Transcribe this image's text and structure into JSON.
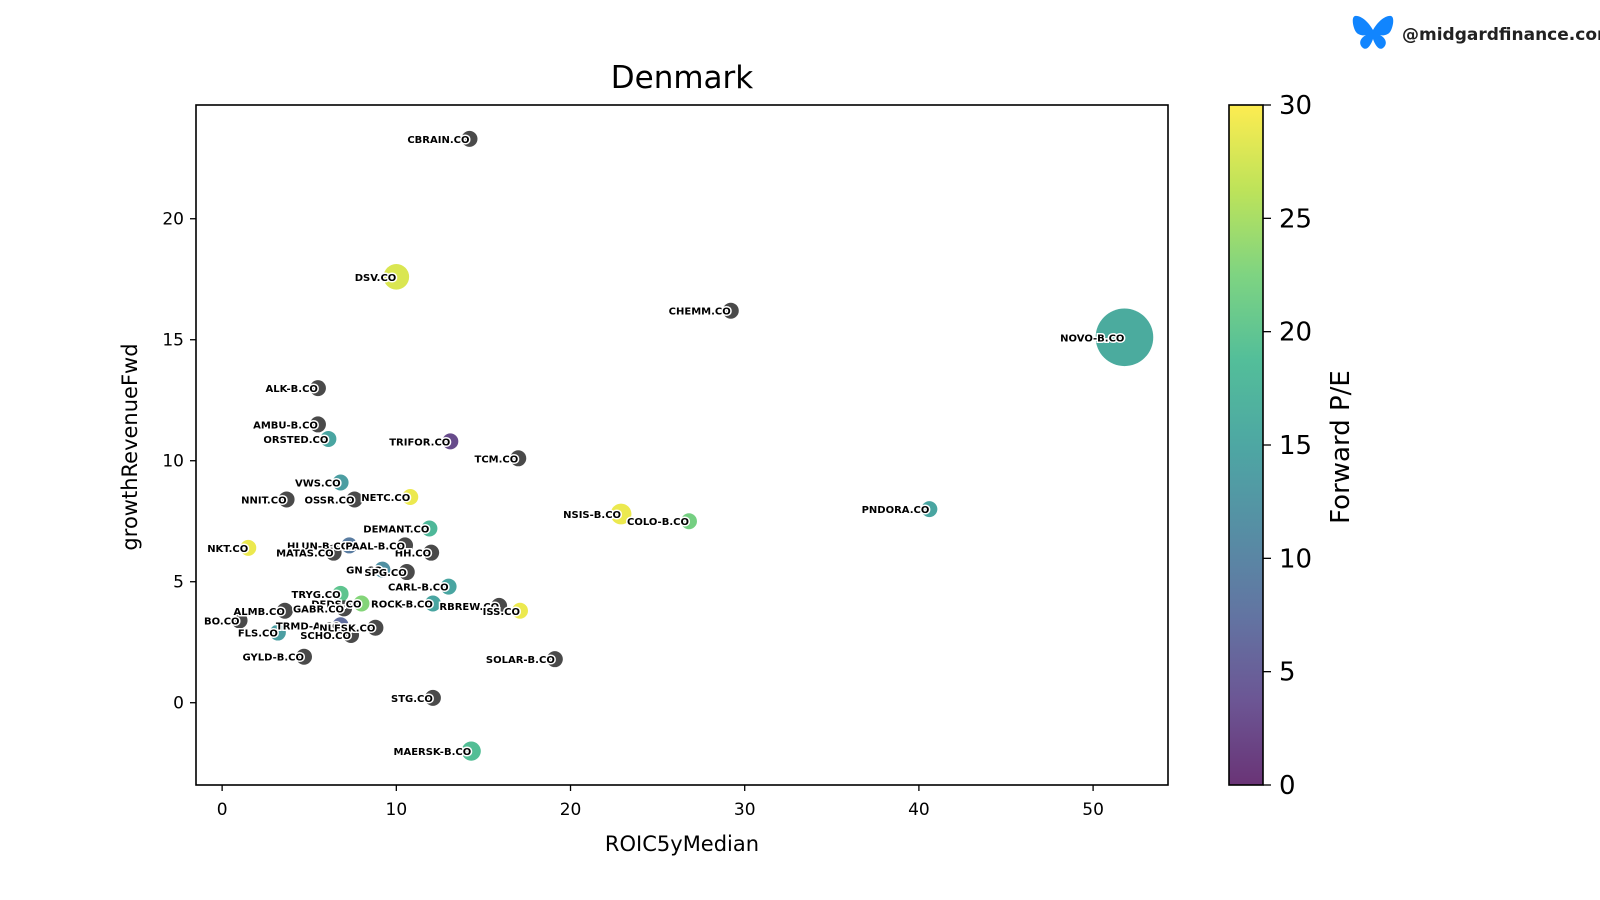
{
  "brand": {
    "handle": "@midgardfinance.com",
    "icon": "butterfly-icon",
    "icon_color": "#1185fe"
  },
  "chart_data": {
    "type": "scatter",
    "title": "Denmark",
    "xlabel": "ROIC5yMedian",
    "ylabel": "growthRevenueFwd",
    "xlim": [
      -1.5,
      54.3
    ],
    "ylim": [
      -3.4,
      24.7
    ],
    "xticks": [
      0,
      10,
      20,
      30,
      40,
      50
    ],
    "yticks": [
      0,
      5,
      10,
      15,
      20
    ],
    "grid": false,
    "colorbar": {
      "label": "Forward P/E",
      "range": [
        0,
        30
      ],
      "ticks": [
        0,
        5,
        10,
        15,
        20,
        25,
        30
      ],
      "colormap": "viridis"
    },
    "missing_color": "#222222",
    "points": [
      {
        "label": "CBRAIN.CO",
        "x": 14.2,
        "y": 23.3,
        "pe": null,
        "size": 10
      },
      {
        "label": "DSV.CO",
        "x": 10.0,
        "y": 17.6,
        "pe": 28,
        "size": 16
      },
      {
        "label": "CHEMM.CO",
        "x": 29.2,
        "y": 16.2,
        "pe": null,
        "size": 10
      },
      {
        "label": "NOVO-B.CO",
        "x": 51.8,
        "y": 15.1,
        "pe": 16,
        "size": 36
      },
      {
        "label": "ALK-B.CO",
        "x": 5.5,
        "y": 13.0,
        "pe": null,
        "size": 10
      },
      {
        "label": "AMBU-B.CO",
        "x": 5.5,
        "y": 11.5,
        "pe": null,
        "size": 10
      },
      {
        "label": "ORSTED.CO",
        "x": 6.1,
        "y": 10.9,
        "pe": 15,
        "size": 10
      },
      {
        "label": "TRIFOR.CO",
        "x": 13.1,
        "y": 10.8,
        "pe": 3,
        "size": 10
      },
      {
        "label": "TCM.CO",
        "x": 17.0,
        "y": 10.1,
        "pe": null,
        "size": 10
      },
      {
        "label": "VWS.CO",
        "x": 6.8,
        "y": 9.1,
        "pe": 14,
        "size": 10
      },
      {
        "label": "NETC.CO",
        "x": 10.8,
        "y": 8.5,
        "pe": 29,
        "size": 10
      },
      {
        "label": "NNIT.CO",
        "x": 3.7,
        "y": 8.4,
        "pe": null,
        "size": 10
      },
      {
        "label": "OSSR.CO",
        "x": 7.6,
        "y": 8.4,
        "pe": null,
        "size": 10
      },
      {
        "label": "PNDORA.CO",
        "x": 40.6,
        "y": 8.0,
        "pe": 15,
        "size": 10
      },
      {
        "label": "NSIS-B.CO",
        "x": 22.9,
        "y": 7.8,
        "pe": 29,
        "size": 13
      },
      {
        "label": "COLO-B.CO",
        "x": 26.8,
        "y": 7.5,
        "pe": 22,
        "size": 10
      },
      {
        "label": "DEMANT.CO",
        "x": 11.9,
        "y": 7.2,
        "pe": 18,
        "size": 10
      },
      {
        "label": "HH.CO",
        "x": 12.0,
        "y": 6.2,
        "pe": null,
        "size": 10
      },
      {
        "label": "HLUN-B.CO",
        "x": 7.3,
        "y": 6.5,
        "pe": 9,
        "size": 10
      },
      {
        "label": "PAAL-B.CO",
        "x": 10.5,
        "y": 6.5,
        "pe": null,
        "size": 10
      },
      {
        "label": "NKT.CO",
        "x": 1.5,
        "y": 6.4,
        "pe": 29,
        "size": 10
      },
      {
        "label": "MATAS.CO",
        "x": 6.4,
        "y": 6.2,
        "pe": null,
        "size": 10
      },
      {
        "label": "GN.CO",
        "x": 9.2,
        "y": 5.5,
        "pe": 12,
        "size": 10
      },
      {
        "label": "SPG.CO",
        "x": 10.6,
        "y": 5.4,
        "pe": null,
        "size": 10
      },
      {
        "label": "CARL-B.CO",
        "x": 13.0,
        "y": 4.8,
        "pe": 15,
        "size": 10
      },
      {
        "label": "TRYG.CO",
        "x": 6.8,
        "y": 4.5,
        "pe": 20,
        "size": 10
      },
      {
        "label": "DFDS.CO",
        "x": 8.0,
        "y": 4.1,
        "pe": 23,
        "size": 10
      },
      {
        "label": "GABR.CO",
        "x": 7.0,
        "y": 3.9,
        "pe": null,
        "size": 10
      },
      {
        "label": "ROCK-B.CO",
        "x": 12.1,
        "y": 4.1,
        "pe": 15,
        "size": 10
      },
      {
        "label": "RBREW.CO",
        "x": 15.9,
        "y": 4.0,
        "pe": null,
        "size": 10
      },
      {
        "label": "ISS.CO",
        "x": 17.1,
        "y": 3.8,
        "pe": 29,
        "size": 10
      },
      {
        "label": "ALMB.CO",
        "x": 3.6,
        "y": 3.8,
        "pe": null,
        "size": 10
      },
      {
        "label": "TRMD-A.CO",
        "x": 6.8,
        "y": 3.2,
        "pe": 7,
        "size": 10
      },
      {
        "label": "BO.CO",
        "x": 1.0,
        "y": 3.4,
        "pe": null,
        "size": 10
      },
      {
        "label": "NLFSK.CO",
        "x": 8.8,
        "y": 3.1,
        "pe": null,
        "size": 10
      },
      {
        "label": "FLS.CO",
        "x": 3.2,
        "y": 2.9,
        "pe": 14,
        "size": 10
      },
      {
        "label": "SCHO.CO",
        "x": 7.4,
        "y": 2.8,
        "pe": null,
        "size": 10
      },
      {
        "label": "GYLD-B.CO",
        "x": 4.7,
        "y": 1.9,
        "pe": null,
        "size": 10
      },
      {
        "label": "SOLAR-B.CO",
        "x": 19.1,
        "y": 1.8,
        "pe": null,
        "size": 10
      },
      {
        "label": "STG.CO",
        "x": 12.1,
        "y": 0.2,
        "pe": null,
        "size": 10
      },
      {
        "label": "MAERSK-B.CO",
        "x": 14.3,
        "y": -2.0,
        "pe": 19,
        "size": 12
      }
    ]
  }
}
